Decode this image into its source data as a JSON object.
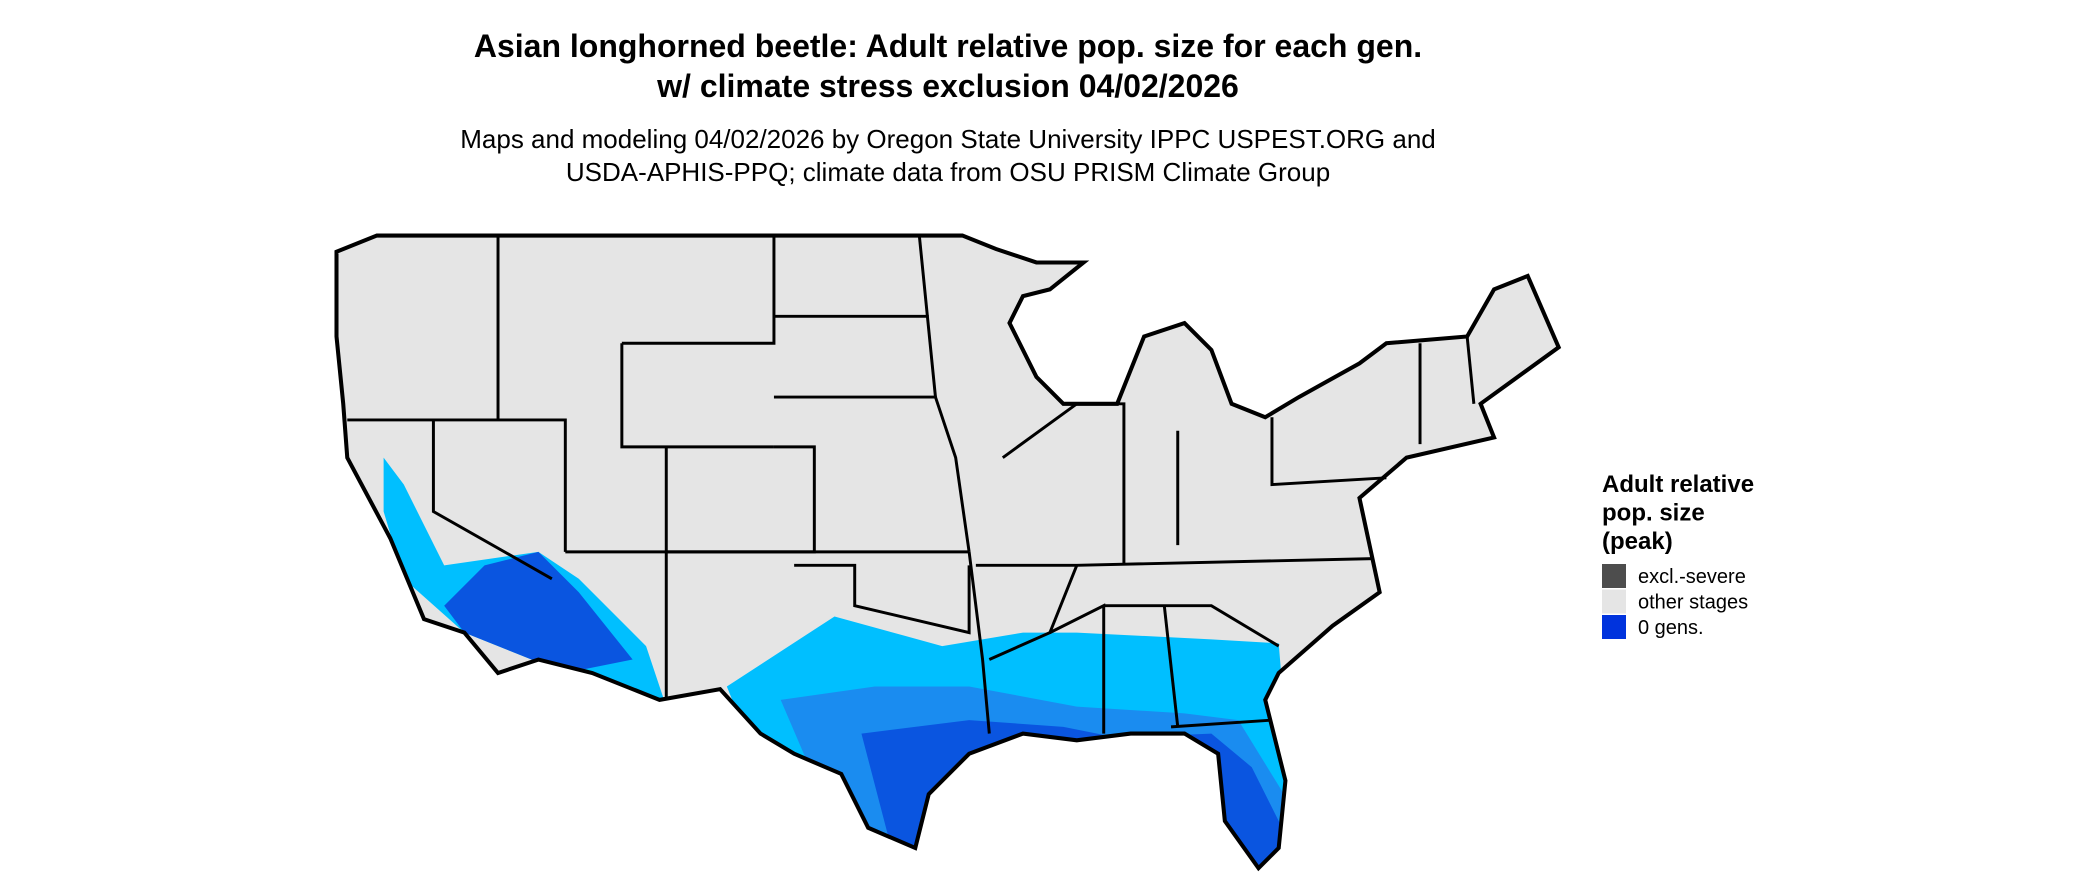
{
  "title": [
    "Asian longhorned beetle: Adult relative pop. size for each gen.",
    "w/ climate stress exclusion 04/02/2026"
  ],
  "subtitle": [
    "Maps and modeling 04/02/2026 by Oregon State University IPPC USPEST.ORG and",
    "USDA-APHIS-PPQ; climate data from OSU PRISM Climate Group"
  ],
  "legend": {
    "title": [
      "Adult relative",
      "pop. size",
      "(peak)"
    ],
    "items": [
      {
        "label": "excl.-severe",
        "color": "#4d4d4d"
      },
      {
        "label": "other stages",
        "color": "#e5e5e5"
      },
      {
        "label": "0 gens.",
        "color": "#0033dd"
      }
    ]
  }
}
